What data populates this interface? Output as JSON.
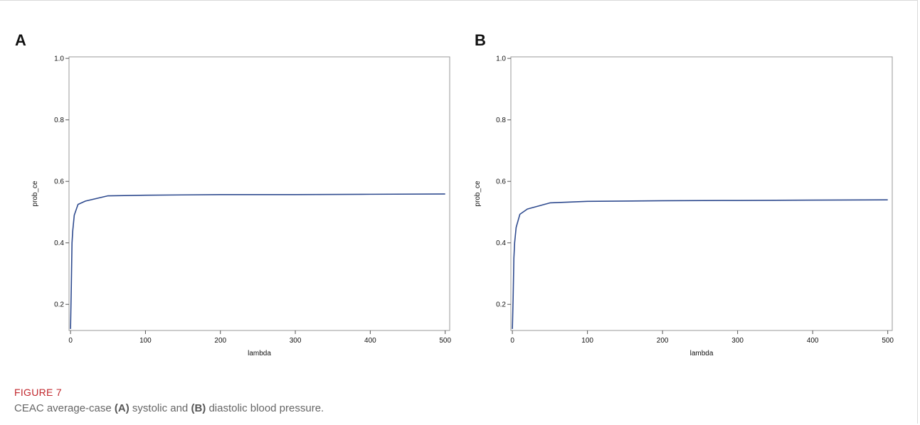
{
  "figure": {
    "label": "FIGURE 7",
    "caption_parts": [
      {
        "text": "CEAC average-case ",
        "bold": false
      },
      {
        "text": "(A)",
        "bold": true
      },
      {
        "text": " systolic and ",
        "bold": false
      },
      {
        "text": "(B)",
        "bold": true
      },
      {
        "text": " diastolic blood pressure.",
        "bold": false
      }
    ]
  },
  "chart_data": [
    {
      "type": "line",
      "panel_label": "A",
      "xlabel": "lambda",
      "ylabel": "prob_ce",
      "xlim": [
        -2,
        506
      ],
      "ylim": [
        0.115,
        1.005
      ],
      "xticks": [
        0,
        100,
        200,
        300,
        400,
        500
      ],
      "yticks": [
        0.2,
        0.4,
        0.6,
        0.8,
        1.0
      ],
      "ytick_labels": [
        "0.2",
        "0.4",
        "0.6",
        "0.8",
        "1.0"
      ],
      "line_color": "#2f4b8f",
      "grid": false,
      "series": [
        {
          "x": [
            0,
            1,
            2,
            3,
            5,
            10,
            20,
            50,
            100,
            200,
            300,
            400,
            500
          ],
          "y": [
            0.12,
            0.25,
            0.4,
            0.44,
            0.49,
            0.525,
            0.536,
            0.553,
            0.555,
            0.557,
            0.557,
            0.558,
            0.559
          ]
        }
      ]
    },
    {
      "type": "line",
      "panel_label": "B",
      "xlabel": "lambda",
      "ylabel": "prob_ce",
      "xlim": [
        -2,
        506
      ],
      "ylim": [
        0.115,
        1.005
      ],
      "xticks": [
        0,
        100,
        200,
        300,
        400,
        500
      ],
      "yticks": [
        0.2,
        0.4,
        0.6,
        0.8,
        1.0
      ],
      "ytick_labels": [
        "0.2",
        "0.4",
        "0.6",
        "0.8",
        "1.0"
      ],
      "line_color": "#2f4b8f",
      "grid": false,
      "series": [
        {
          "x": [
            0,
            1,
            2,
            3,
            5,
            10,
            20,
            50,
            100,
            200,
            300,
            400,
            500
          ],
          "y": [
            0.12,
            0.22,
            0.35,
            0.4,
            0.45,
            0.493,
            0.51,
            0.53,
            0.535,
            0.537,
            0.538,
            0.539,
            0.54
          ]
        }
      ]
    }
  ]
}
